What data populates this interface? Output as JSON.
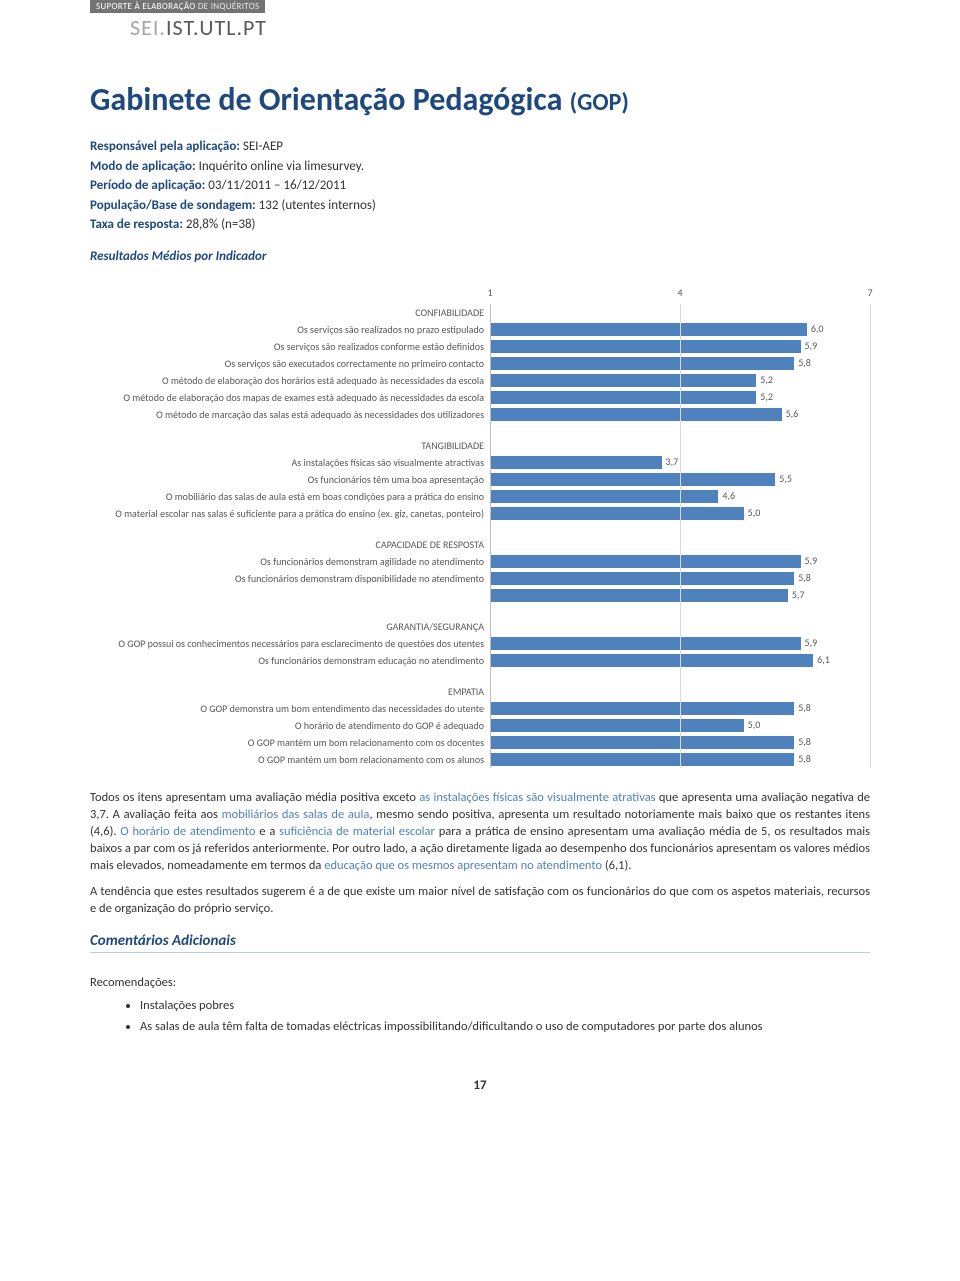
{
  "header": {
    "badge_left": "SUPORTE À ELABORAÇÃO",
    "badge_right": " DE INQUÉRITOS",
    "sei_gray": "SEI.",
    "sei_dark": "IST.UTL.PT"
  },
  "title_main": "Gabinete de Orientação Pedagógica ",
  "title_sub": "(GOP)",
  "meta": {
    "resp_lbl": "Responsável pela aplicação: ",
    "resp_val": "SEI-AEP",
    "modo_lbl": "Modo de aplicação: ",
    "modo_val": "Inquérito online via limesurvey.",
    "periodo_lbl": "Período de aplicação: ",
    "periodo_val": "03/11/2011 – 16/12/2011",
    "pop_lbl": "População/Base de sondagem: ",
    "pop_val": "132 (utentes internos)",
    "taxa_lbl": "Taxa de resposta: ",
    "taxa_val": "28,8% (n=38)",
    "resultados": "Resultados Médios por Indicador"
  },
  "chart": {
    "xmin": 1,
    "xmax": 7,
    "ticks": [
      1,
      4,
      7
    ],
    "bar_color": "#4f81bd",
    "groups": [
      {
        "cat": "CONFIABILIDADE",
        "rows": [
          {
            "label": "Os serviços são realizados no prazo estipulado",
            "v": 6.0,
            "t": "6,0"
          },
          {
            "label": "Os serviços são realizados conforme estão definidos",
            "v": 5.9,
            "t": "5,9"
          },
          {
            "label": "Os serviços são executados correctamente no primeiro contacto",
            "v": 5.8,
            "t": "5,8"
          },
          {
            "label": "O método de elaboração dos horários está adequado às necessidades da escola",
            "v": 5.2,
            "t": "5,2"
          },
          {
            "label": "O método de elaboração dos mapas de exames está adequado às necessidades da escola",
            "v": 5.2,
            "t": "5,2"
          },
          {
            "label": "O método de marcação das salas está adequado às necessidades dos utilizadores",
            "v": 5.6,
            "t": "5,6"
          }
        ]
      },
      {
        "cat": "TANGIBILIDADE",
        "rows": [
          {
            "label": "As instalações físicas são visualmente atractivas",
            "v": 3.7,
            "t": "3,7"
          },
          {
            "label": "Os funcionários têm uma boa apresentação",
            "v": 5.5,
            "t": "5,5"
          },
          {
            "label": "O mobiliário das salas de aula está em boas condições para a prática do ensino",
            "v": 4.6,
            "t": "4,6"
          },
          {
            "label": "O material escolar nas salas é suficiente para a prática do ensino (ex. giz, canetas, ponteiro)",
            "v": 5.0,
            "t": "5,0"
          }
        ]
      },
      {
        "cat": "CAPACIDADE DE RESPOSTA",
        "rows": [
          {
            "label": "Os funcionários demonstram agilidade no atendimento",
            "v": 5.9,
            "t": "5,9"
          },
          {
            "label": "Os funcionários demonstram disponibilidade no atendimento",
            "v": 5.8,
            "t": "5,8"
          },
          {
            "label": "",
            "v": 5.7,
            "t": "5,7"
          }
        ]
      },
      {
        "cat": "GARANTIA/SEGURANÇA",
        "rows": [
          {
            "label": "O GOP possui os conhecimentos necessários para esclarecimento de questões dos utentes",
            "v": 5.9,
            "t": "5,9"
          },
          {
            "label": "Os funcionários demonstram educação no atendimento",
            "v": 6.1,
            "t": "6,1"
          }
        ]
      },
      {
        "cat": "EMPATIA",
        "rows": [
          {
            "label": "O GOP demonstra um bom entendimento das necessidades do utente",
            "v": 5.8,
            "t": "5,8"
          },
          {
            "label": "O horário de atendimento do GOP é adequado",
            "v": 5.0,
            "t": "5,0"
          },
          {
            "label": "O GOP mantém um bom relacionamento com os docentes",
            "v": 5.8,
            "t": "5,8"
          },
          {
            "label": "O GOP mantém um bom relacionamento com os alunos",
            "v": 5.8,
            "t": "5,8"
          }
        ]
      }
    ]
  },
  "para1": {
    "a": "Todos os itens apresentam uma avaliação média positiva exceto ",
    "hl1": "as instalações físicas são visualmente atrativas",
    "b": " que apresenta uma avaliação negativa de 3,7. A avaliação feita aos ",
    "hl2": "mobiliários das salas de aula",
    "c": ", mesmo sendo positiva, apresenta um resultado notoriamente mais baixo que os restantes itens (4,6). ",
    "hl3": "O horário de atendimento",
    "d": " e a ",
    "hl4": "suficiência de material escolar",
    "e": " para a prática de ensino apresentam uma avaliação média de 5, os resultados mais baixos a par com os já referidos anteriormente. Por outro lado, a ação diretamente ligada ao desempenho dos funcionários apresentam os valores médios mais elevados, nomeadamente em termos da ",
    "hl5": "educação que os mesmos apresentam no atendimento",
    "f": " (6,1)."
  },
  "para2": "A tendência que estes resultados sugerem é a de que existe um maior nível de satisfação com os funcionários do que com os aspetos materiais, recursos e de organização do próprio serviço.",
  "comments_head": "Comentários Adicionais",
  "recs_title": "Recomendações:",
  "recs": [
    "Instalações pobres",
    "As salas de aula têm falta de tomadas eléctricas impossibilitando/dificultando o uso de computadores por parte dos alunos"
  ],
  "pagenum": "17"
}
